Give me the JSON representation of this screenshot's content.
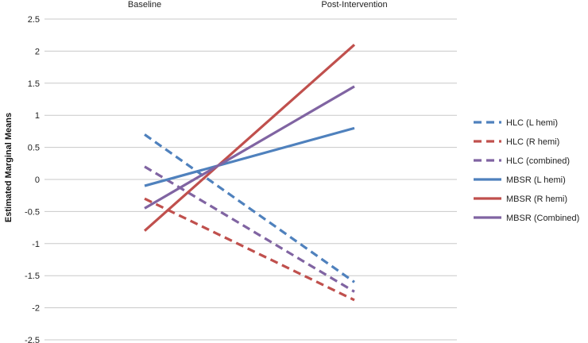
{
  "chart_data": {
    "type": "line",
    "categories": [
      "Baseline",
      "Post-Intervention"
    ],
    "ylabel": "Estimated Marginal Means",
    "xlabel": "",
    "ylim": [
      -2.5,
      2.5
    ],
    "yticks": [
      -2.5,
      -2,
      -1.5,
      -1,
      -0.5,
      0,
      0.5,
      1,
      1.5,
      2,
      2.5
    ],
    "grid": "horizontal",
    "legend": "right",
    "series": [
      {
        "name": "HLC (L hemi)",
        "values": [
          0.7,
          -1.6
        ],
        "color": "#4f81bd",
        "dash": "dashed"
      },
      {
        "name": "HLC (R hemi)",
        "values": [
          -0.3,
          -1.88
        ],
        "color": "#c0504d",
        "dash": "dashed"
      },
      {
        "name": "HLC (combined)",
        "values": [
          0.2,
          -1.75
        ],
        "color": "#8064a2",
        "dash": "dashed"
      },
      {
        "name": "MBSR (L hemi)",
        "values": [
          -0.1,
          0.8
        ],
        "color": "#4f81bd",
        "dash": "solid"
      },
      {
        "name": "MBSR (R hemi)",
        "values": [
          -0.8,
          2.1
        ],
        "color": "#c0504d",
        "dash": "solid"
      },
      {
        "name": "MBSR (Combined)",
        "values": [
          -0.45,
          1.45
        ],
        "color": "#8064a2",
        "dash": "solid"
      }
    ]
  }
}
